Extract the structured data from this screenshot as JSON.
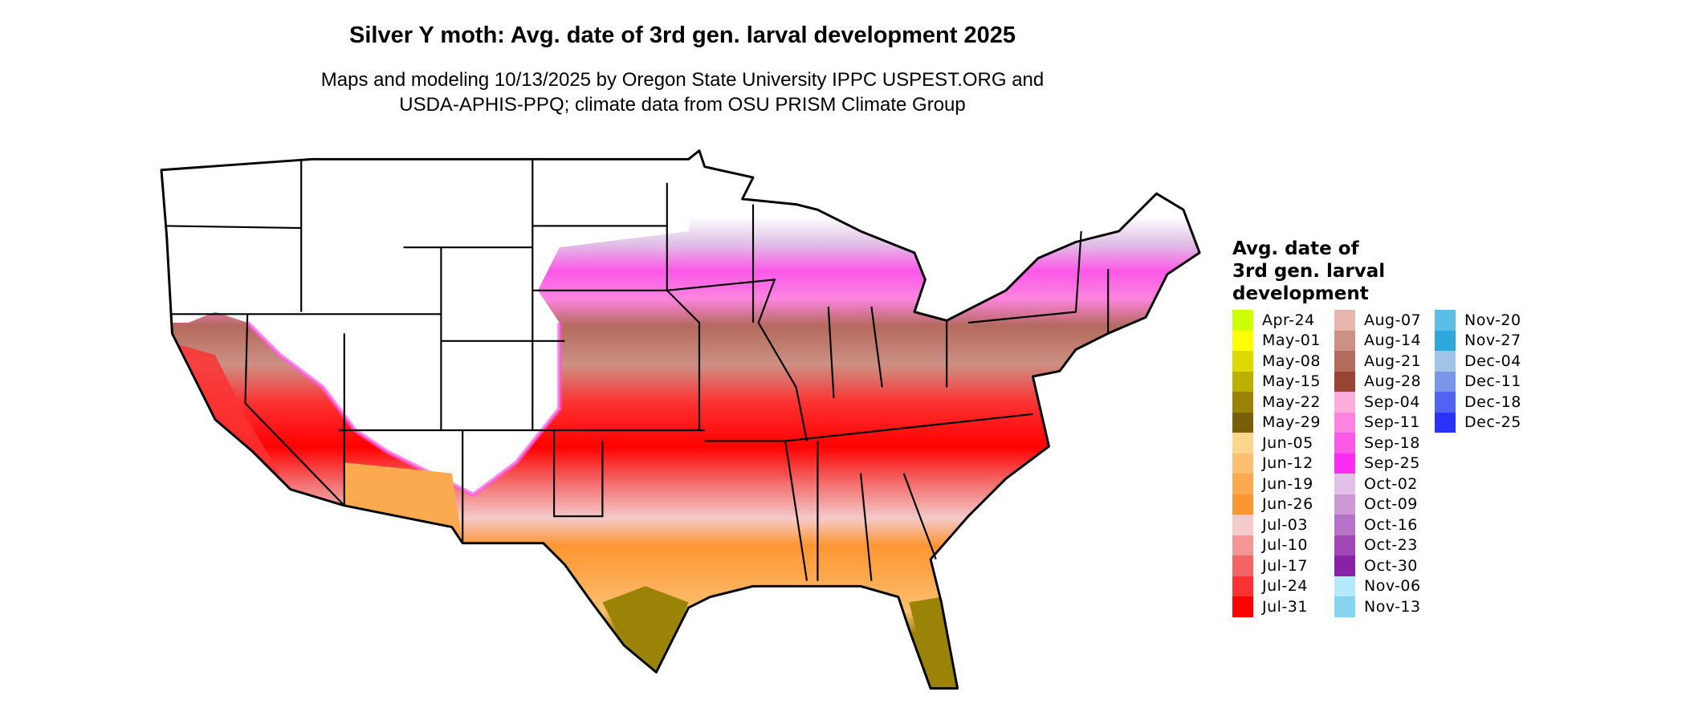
{
  "title": "Silver Y moth: Avg. date of 3rd gen. larval development 2025",
  "subtitle_line1": "Maps and modeling 10/13/2025 by Oregon State University IPPC USPEST.ORG and",
  "subtitle_line2": "USDA-APHIS-PPQ; climate data from OSU PRISM Climate Group",
  "legend": {
    "title_lines": [
      "Avg. date of",
      "3rd gen. larval",
      "development"
    ],
    "items": [
      {
        "label": "Apr-24",
        "color": "#CCFF00"
      },
      {
        "label": "May-01",
        "color": "#FFFF00"
      },
      {
        "label": "May-08",
        "color": "#DDD800"
      },
      {
        "label": "May-15",
        "color": "#BBB000"
      },
      {
        "label": "May-22",
        "color": "#9A8306"
      },
      {
        "label": "May-29",
        "color": "#7A5E08"
      },
      {
        "label": "Jun-05",
        "color": "#FDD68C"
      },
      {
        "label": "Jun-12",
        "color": "#FDC070"
      },
      {
        "label": "Jun-19",
        "color": "#FCAA50"
      },
      {
        "label": "Jun-26",
        "color": "#FC9633"
      },
      {
        "label": "Jul-03",
        "color": "#F4CACA"
      },
      {
        "label": "Jul-10",
        "color": "#F49696"
      },
      {
        "label": "Jul-17",
        "color": "#F46464"
      },
      {
        "label": "Jul-24",
        "color": "#FC3232"
      },
      {
        "label": "Jul-31",
        "color": "#FF0000"
      },
      {
        "label": "Aug-07",
        "color": "#E6B7AE"
      },
      {
        "label": "Aug-14",
        "color": "#CC9084"
      },
      {
        "label": "Aug-21",
        "color": "#B46A5C"
      },
      {
        "label": "Aug-28",
        "color": "#9A4533"
      },
      {
        "label": "Sep-04",
        "color": "#FDAEDC"
      },
      {
        "label": "Sep-11",
        "color": "#FD84E0"
      },
      {
        "label": "Sep-18",
        "color": "#FC58E8"
      },
      {
        "label": "Sep-25",
        "color": "#FC2CF0"
      },
      {
        "label": "Oct-02",
        "color": "#E0C0E6"
      },
      {
        "label": "Oct-09",
        "color": "#CC97D4"
      },
      {
        "label": "Oct-16",
        "color": "#B672C6"
      },
      {
        "label": "Oct-23",
        "color": "#A048B6"
      },
      {
        "label": "Oct-30",
        "color": "#8A22A6"
      },
      {
        "label": "Nov-06",
        "color": "#B4EAFC"
      },
      {
        "label": "Nov-13",
        "color": "#86D4F0"
      },
      {
        "label": "Nov-20",
        "color": "#5ABEE6"
      },
      {
        "label": "Nov-27",
        "color": "#2EA8DC"
      },
      {
        "label": "Dec-04",
        "color": "#A0C4E6"
      },
      {
        "label": "Dec-11",
        "color": "#7A96EA"
      },
      {
        "label": "Dec-18",
        "color": "#5064F0"
      },
      {
        "label": "Dec-25",
        "color": "#2A32FA"
      }
    ]
  }
}
